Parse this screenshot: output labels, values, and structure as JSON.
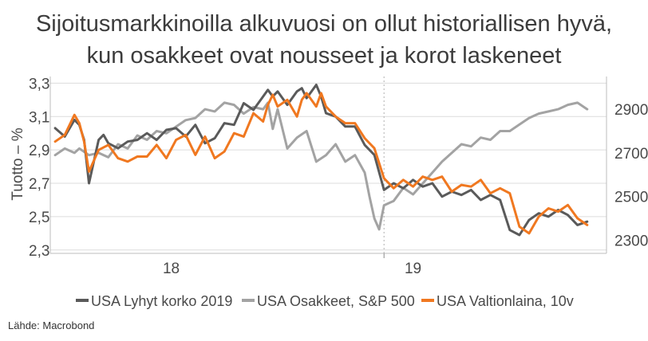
{
  "title_line1": "Sijoitusmarkkinoilla alkuvuosi on ollut historiallisen hyvä,",
  "title_line2": "kun osakkeet ovat nousseet ja korot laskeneet",
  "source": "Lähde: Macrobond",
  "chart_data": {
    "type": "line",
    "title": "Sijoitusmarkkinoilla alkuvuosi on ollut historiallisen hyvä, kun osakkeet ovat nousseet ja korot laskeneet",
    "ylabel_left": "Tuotto – %",
    "ylabel_right": "",
    "ylim_left": [
      2.28,
      3.34
    ],
    "ylim_right": [
      2240,
      3050
    ],
    "yticks_left": [
      "3,3",
      "3,1",
      "2,9",
      "2,7",
      "2,5",
      "2,3"
    ],
    "yticks_left_values": [
      3.3,
      3.1,
      2.9,
      2.7,
      2.5,
      2.3
    ],
    "yticks_right": [
      "2900",
      "2700",
      "2500",
      "2300"
    ],
    "yticks_right_values": [
      2900,
      2700,
      2500,
      2300
    ],
    "xlim": [
      2018.25,
      2019.4
    ],
    "xticks": [
      "18",
      "19"
    ],
    "xtick_values": [
      2018.5,
      2019.0
    ],
    "year_divider": 2018.94,
    "grid": "horizontal",
    "legend_position": "bottom",
    "series": [
      {
        "name": "USA Lyhyt korko 2019",
        "axis": "left",
        "color": "#5a5a5a",
        "x": [
          2018.26,
          2018.28,
          2018.3,
          2018.31,
          2018.32,
          2018.33,
          2018.35,
          2018.36,
          2018.37,
          2018.39,
          2018.41,
          2018.43,
          2018.45,
          2018.47,
          2018.49,
          2018.51,
          2018.53,
          2018.55,
          2018.57,
          2018.59,
          2018.61,
          2018.63,
          2018.65,
          2018.67,
          2018.69,
          2018.7,
          2018.71,
          2018.72,
          2018.74,
          2018.76,
          2018.77,
          2018.78,
          2018.8,
          2018.81,
          2018.82,
          2018.84,
          2018.86,
          2018.88,
          2018.9,
          2018.92,
          2018.94,
          2018.96,
          2018.98,
          2019.0,
          2019.02,
          2019.04,
          2019.06,
          2019.08,
          2019.1,
          2019.12,
          2019.14,
          2019.16,
          2019.18,
          2019.2,
          2019.22,
          2019.24,
          2019.26,
          2019.28,
          2019.3,
          2019.32,
          2019.34,
          2019.36
        ],
        "y": [
          3.03,
          2.98,
          3.08,
          3.05,
          2.96,
          2.7,
          2.96,
          2.99,
          2.94,
          2.91,
          2.95,
          2.96,
          3.0,
          2.96,
          3.02,
          3.03,
          2.98,
          3.05,
          2.94,
          2.97,
          3.06,
          3.05,
          3.18,
          3.14,
          3.22,
          3.26,
          3.22,
          3.25,
          3.17,
          3.25,
          3.27,
          3.21,
          3.29,
          3.22,
          3.12,
          3.1,
          3.04,
          3.04,
          2.93,
          2.87,
          2.66,
          2.7,
          2.67,
          2.72,
          2.68,
          2.7,
          2.62,
          2.65,
          2.63,
          2.66,
          2.6,
          2.63,
          2.6,
          2.42,
          2.39,
          2.48,
          2.52,
          2.5,
          2.54,
          2.51,
          2.45,
          2.47
        ]
      },
      {
        "name": "USA Osakkeet, S&P 500",
        "axis": "right",
        "color": "#a3a3a3",
        "x": [
          2018.26,
          2018.28,
          2018.3,
          2018.31,
          2018.33,
          2018.35,
          2018.37,
          2018.39,
          2018.41,
          2018.43,
          2018.45,
          2018.47,
          2018.49,
          2018.51,
          2018.53,
          2018.55,
          2018.57,
          2018.59,
          2018.61,
          2018.63,
          2018.65,
          2018.67,
          2018.69,
          2018.7,
          2018.71,
          2018.72,
          2018.74,
          2018.76,
          2018.78,
          2018.8,
          2018.82,
          2018.84,
          2018.86,
          2018.88,
          2018.9,
          2018.91,
          2018.92,
          2018.93,
          2018.94,
          2018.96,
          2018.98,
          2019.0,
          2019.02,
          2019.04,
          2019.06,
          2019.08,
          2019.1,
          2019.12,
          2019.14,
          2019.16,
          2019.18,
          2019.2,
          2019.22,
          2019.24,
          2019.26,
          2019.28,
          2019.3,
          2019.32,
          2019.34,
          2019.36
        ],
        "y": [
          2690,
          2720,
          2700,
          2720,
          2690,
          2700,
          2680,
          2740,
          2720,
          2780,
          2760,
          2800,
          2790,
          2820,
          2850,
          2860,
          2900,
          2890,
          2930,
          2920,
          2880,
          2910,
          2900,
          2930,
          2810,
          2900,
          2720,
          2770,
          2800,
          2660,
          2690,
          2740,
          2660,
          2690,
          2610,
          2500,
          2400,
          2350,
          2460,
          2480,
          2540,
          2510,
          2560,
          2610,
          2660,
          2700,
          2740,
          2730,
          2770,
          2760,
          2800,
          2800,
          2830,
          2860,
          2880,
          2890,
          2900,
          2920,
          2930,
          2900
        ]
      },
      {
        "name": "USA Valtionlaina, 10v",
        "axis": "left",
        "color": "#f07820",
        "x": [
          2018.26,
          2018.28,
          2018.3,
          2018.31,
          2018.32,
          2018.33,
          2018.35,
          2018.37,
          2018.39,
          2018.41,
          2018.43,
          2018.45,
          2018.47,
          2018.49,
          2018.51,
          2018.53,
          2018.55,
          2018.57,
          2018.59,
          2018.61,
          2018.63,
          2018.65,
          2018.67,
          2018.69,
          2018.7,
          2018.71,
          2018.72,
          2018.74,
          2018.76,
          2018.77,
          2018.78,
          2018.8,
          2018.81,
          2018.82,
          2018.84,
          2018.86,
          2018.88,
          2018.9,
          2018.92,
          2018.94,
          2018.96,
          2018.98,
          2019.0,
          2019.02,
          2019.04,
          2019.06,
          2019.08,
          2019.1,
          2019.12,
          2019.14,
          2019.16,
          2019.18,
          2019.2,
          2019.22,
          2019.24,
          2019.26,
          2019.28,
          2019.3,
          2019.32,
          2019.34,
          2019.36
        ],
        "y": [
          2.95,
          2.99,
          3.11,
          3.06,
          2.95,
          2.77,
          2.9,
          2.93,
          2.85,
          2.83,
          2.86,
          2.86,
          2.93,
          2.85,
          2.96,
          2.99,
          2.87,
          2.98,
          2.85,
          2.89,
          3.0,
          2.98,
          3.12,
          3.07,
          3.17,
          3.23,
          3.16,
          3.2,
          3.1,
          3.2,
          3.24,
          3.16,
          3.24,
          3.16,
          3.1,
          3.06,
          3.06,
          2.97,
          2.91,
          2.73,
          2.67,
          2.72,
          2.68,
          2.74,
          2.72,
          2.74,
          2.65,
          2.69,
          2.68,
          2.72,
          2.64,
          2.67,
          2.64,
          2.44,
          2.4,
          2.5,
          2.55,
          2.53,
          2.57,
          2.49,
          2.45
        ]
      }
    ]
  }
}
